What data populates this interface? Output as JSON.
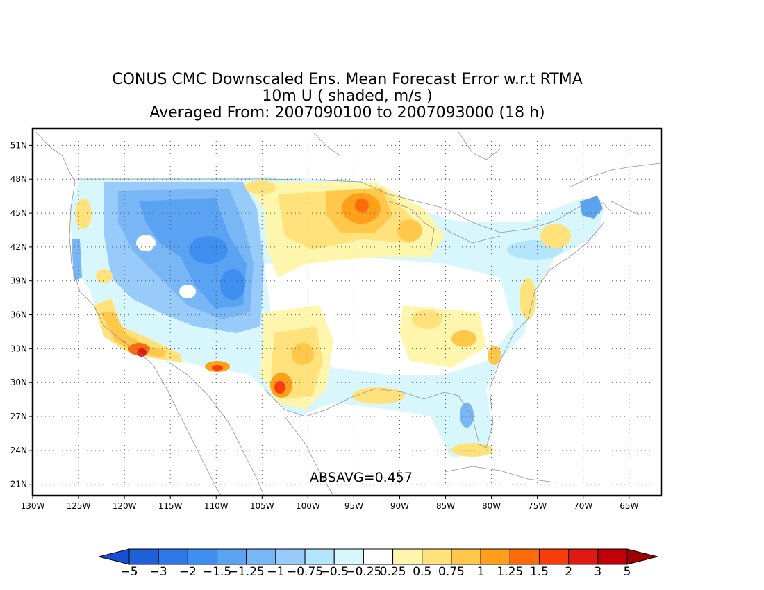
{
  "title": {
    "line1": "CONUS CMC Downscaled Ens. Mean Forecast Error w.r.t RTMA",
    "line2": "10m U ( shaded, m/s )",
    "line3": "Averaged From: 2007090100 to 2007093000 (18 h)"
  },
  "annotation": "ABSAVG=0.457",
  "axes": {
    "lat_labels": [
      "51N",
      "48N",
      "45N",
      "42N",
      "39N",
      "36N",
      "33N",
      "30N",
      "27N",
      "24N",
      "21N"
    ],
    "lat_values": [
      51,
      48,
      45,
      42,
      39,
      36,
      33,
      30,
      27,
      24,
      21
    ],
    "lon_labels": [
      "130W",
      "125W",
      "120W",
      "115W",
      "110W",
      "105W",
      "100W",
      "95W",
      "90W",
      "85W",
      "80W",
      "75W",
      "70W",
      "65W"
    ],
    "lon_values": [
      -130,
      -125,
      -120,
      -115,
      -110,
      -105,
      -100,
      -95,
      -90,
      -85,
      -80,
      -75,
      -70,
      -65
    ],
    "lon_range": [
      -130,
      -61.5
    ],
    "lat_range": [
      20,
      52.5
    ],
    "grid": "dotted"
  },
  "colorbar": {
    "labels": [
      "-5",
      "-3",
      "-2",
      "-1.5",
      "-1.25",
      "-1",
      "-0.75",
      "-0.5",
      "-0.25",
      "0.25",
      "0.5",
      "0.75",
      "1",
      "1.25",
      "1.5",
      "2",
      "3",
      "5"
    ],
    "colors": [
      "#1f5fd8",
      "#2e78e8",
      "#3f8ff0",
      "#5aa2f2",
      "#78b6f6",
      "#98cbfa",
      "#b3e6fc",
      "#d8f7fc",
      "#ffffff",
      "#fff6ae",
      "#ffe27c",
      "#ffc84a",
      "#ff9f1a",
      "#ff6a0c",
      "#fa3c0a",
      "#e01a10",
      "#c00008"
    ],
    "under_color": "#1a4ed0",
    "over_color": "#a00000"
  },
  "colors": {
    "neg_strong": "#3f8ff0",
    "neg_mid": "#78b6f6",
    "neg_light": "#b3e6fc",
    "pos_light": "#fff6ae",
    "pos_mid": "#ffe27c",
    "pos_orange": "#ffc84a",
    "pos_deep": "#ff9f1a",
    "pos_red": "#fa3c0a"
  }
}
